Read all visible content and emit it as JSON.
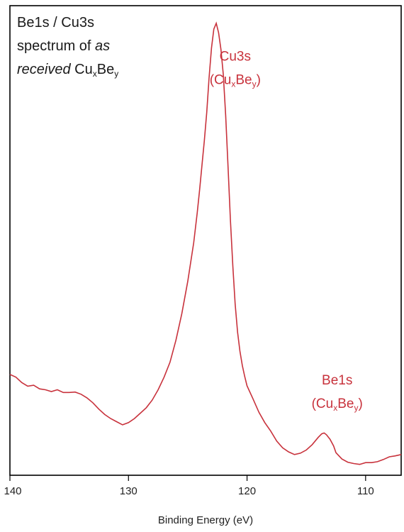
{
  "chart_data": {
    "type": "line",
    "title": {
      "line1": "Be1s / Cu3s",
      "line2_a": "spectrum of ",
      "line2_b": "as",
      "line3_a": "received",
      "line3_b": " Cu",
      "line3_sub1": "x",
      "line3_c": "Be",
      "line3_sub2": "y"
    },
    "xlabel": "Binding Energy (eV)",
    "ylabel": "",
    "xlim": [
      140,
      107
    ],
    "ylim": [
      0,
      1
    ],
    "x_reversed": true,
    "x_ticks": [
      140,
      130,
      120,
      110
    ],
    "x_tick_labels": [
      "140",
      "130",
      "120",
      "110"
    ],
    "y_ticks_visible": false,
    "grid": false,
    "line_color": "#c8323c",
    "annotations": [
      {
        "main": "Cu3s",
        "paren_open": "(Cu",
        "sub1": "x",
        "mid": "Be",
        "sub2": "y",
        "paren_close": ")",
        "x": 121.0,
        "y": 0.9
      },
      {
        "main": "Be1s",
        "paren_open": "(Cu",
        "sub1": "x",
        "mid": "Be",
        "sub2": "y",
        "paren_close": ")",
        "x": 112.4,
        "y": 0.18
      }
    ],
    "series": [
      {
        "name": "",
        "x": [
          140,
          139.5,
          139,
          138.5,
          138,
          137.5,
          137,
          136.5,
          136,
          135.5,
          135,
          134.5,
          134,
          133.5,
          133,
          132.5,
          132,
          131.5,
          131,
          130.5,
          130,
          129.5,
          129,
          128.5,
          128,
          127.5,
          127,
          126.5,
          126,
          125.5,
          125,
          124.5,
          124.2,
          124,
          123.8,
          123.6,
          123.4,
          123.2,
          123,
          122.8,
          122.6,
          122.4,
          122.2,
          122,
          121.8,
          121.6,
          121.4,
          121.2,
          121,
          120.8,
          120.6,
          120.4,
          120.2,
          120,
          119.5,
          119,
          118.5,
          118,
          117.5,
          117,
          116.5,
          116,
          115.5,
          115,
          114.5,
          114,
          113.7,
          113.5,
          113.3,
          113,
          112.7,
          112.5,
          112,
          111.5,
          111,
          110.5,
          110,
          109.5,
          109,
          108.5,
          108,
          107.5,
          107
        ],
        "y": [
          0.202,
          0.196,
          0.184,
          0.176,
          0.178,
          0.17,
          0.168,
          0.164,
          0.168,
          0.162,
          0.162,
          0.163,
          0.158,
          0.15,
          0.139,
          0.125,
          0.113,
          0.104,
          0.097,
          0.09,
          0.095,
          0.104,
          0.116,
          0.128,
          0.145,
          0.168,
          0.196,
          0.229,
          0.278,
          0.337,
          0.409,
          0.495,
          0.562,
          0.612,
          0.668,
          0.722,
          0.785,
          0.862,
          0.928,
          0.97,
          0.983,
          0.962,
          0.925,
          0.868,
          0.778,
          0.662,
          0.545,
          0.443,
          0.358,
          0.296,
          0.254,
          0.222,
          0.198,
          0.177,
          0.148,
          0.118,
          0.095,
          0.076,
          0.054,
          0.039,
          0.03,
          0.024,
          0.027,
          0.034,
          0.046,
          0.062,
          0.07,
          0.072,
          0.068,
          0.058,
          0.043,
          0.028,
          0.014,
          0.007,
          0.004,
          0.002,
          0.006,
          0.006,
          0.008,
          0.013,
          0.019,
          0.021,
          0.024
        ]
      }
    ]
  }
}
